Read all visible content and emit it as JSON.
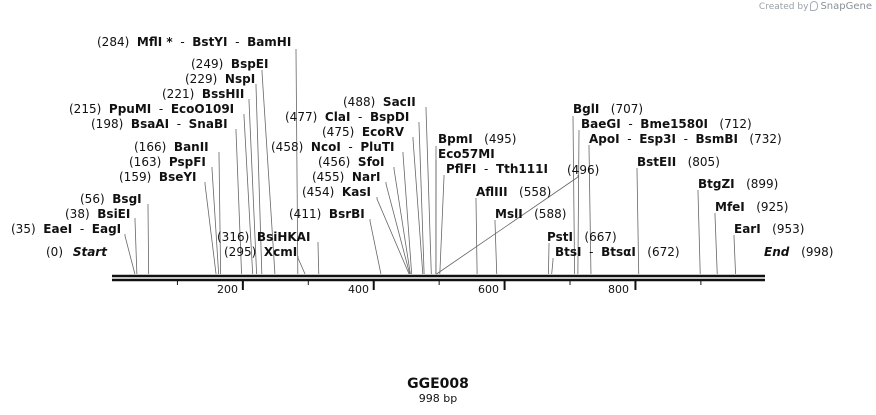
{
  "map": {
    "name": "GGE008",
    "length_label": "998 bp",
    "length": 998,
    "credit_prefix": "Created by",
    "credit_brand": "SnapGene",
    "start_label": "Start",
    "end_label": "End",
    "start_pos": "(0)",
    "end_pos": "(998)",
    "ticks": [
      "200",
      "400",
      "600",
      "800"
    ]
  },
  "sites": [
    {
      "id": "mfli",
      "pos": "(284)",
      "names": [
        "MflI *",
        "BstYI",
        "BamHI"
      ],
      "cut": 284
    },
    {
      "id": "bspei",
      "pos": "(249)",
      "names": [
        "BspEI"
      ],
      "cut": 249
    },
    {
      "id": "nspi",
      "pos": "(229)",
      "names": [
        "NspI"
      ],
      "cut": 229
    },
    {
      "id": "bsshii",
      "pos": "(221)",
      "names": [
        "BssHII"
      ],
      "cut": 221
    },
    {
      "id": "ppumi",
      "pos": "(215)",
      "names": [
        "PpuMI",
        "EcoO109I"
      ],
      "cut": 215
    },
    {
      "id": "bsaai",
      "pos": "(198)",
      "names": [
        "BsaAI",
        "SnaBI"
      ],
      "cut": 198
    },
    {
      "id": "banii",
      "pos": "(166)",
      "names": [
        "BanII"
      ],
      "cut": 166
    },
    {
      "id": "pspfi",
      "pos": "(163)",
      "names": [
        "PspFI"
      ],
      "cut": 163
    },
    {
      "id": "bseyi",
      "pos": "(159)",
      "names": [
        "BseYI"
      ],
      "cut": 159
    },
    {
      "id": "bsgi",
      "pos": "(56)",
      "names": [
        "BsgI"
      ],
      "cut": 56
    },
    {
      "id": "bsiei",
      "pos": "(38)",
      "names": [
        "BsiEI"
      ],
      "cut": 38
    },
    {
      "id": "eaei",
      "pos": "(35)",
      "names": [
        "EaeI",
        "EagI"
      ],
      "cut": 35
    },
    {
      "id": "bsihkai",
      "pos": "(316)",
      "names": [
        "BsiHKAI"
      ],
      "cut": 316
    },
    {
      "id": "xcmi",
      "pos": "(295)",
      "names": [
        "XcmI"
      ],
      "cut": 295
    },
    {
      "id": "sacii",
      "pos": "(488)",
      "names": [
        "SacII"
      ],
      "cut": 488
    },
    {
      "id": "clai",
      "pos": "(477)",
      "names": [
        "ClaI",
        "BspDI"
      ],
      "cut": 477
    },
    {
      "id": "ecorv",
      "pos": "(475)",
      "names": [
        "EcoRV"
      ],
      "cut": 475
    },
    {
      "id": "ncoi",
      "pos": "(458)",
      "names": [
        "NcoI",
        "PluTI"
      ],
      "cut": 458
    },
    {
      "id": "sfoi",
      "pos": "(456)",
      "names": [
        "SfoI"
      ],
      "cut": 456
    },
    {
      "id": "nari",
      "pos": "(455)",
      "names": [
        "NarI"
      ],
      "cut": 455
    },
    {
      "id": "kasi",
      "pos": "(454)",
      "names": [
        "KasI"
      ],
      "cut": 454
    },
    {
      "id": "bsrbi",
      "pos": "(411)",
      "names": [
        "BsrBI"
      ],
      "cut": 411
    },
    {
      "id": "bpmi",
      "pos": "(495)",
      "names": [
        "BpmI"
      ],
      "cut": 495
    },
    {
      "id": "eco57mi",
      "pos": "",
      "names": [
        "Eco57MI"
      ],
      "cut": 495
    },
    {
      "id": "pflfi",
      "pos": "",
      "names": [
        "PflFI",
        "Tth111I"
      ],
      "cut": 501
    },
    {
      "id": "afliii",
      "pos": "(558)",
      "names": [
        "AflIII"
      ],
      "cut": 558
    },
    {
      "id": "msli",
      "pos": "(588)",
      "names": [
        "MslI"
      ],
      "cut": 588
    },
    {
      "id": "bgli",
      "pos": "(707)",
      "names": [
        "BglI"
      ],
      "cut": 707
    },
    {
      "id": "baegi",
      "pos": "(712)",
      "names": [
        "BaeGI",
        "Bme1580I"
      ],
      "cut": 712
    },
    {
      "id": "apoi",
      "pos": "(732)",
      "names": [
        "ApoI",
        "Esp3I",
        "BsmBI"
      ],
      "cut": 732
    },
    {
      "id": "bsteii",
      "pos": "(805)",
      "names": [
        "BstEII"
      ],
      "cut": 805
    },
    {
      "id": "btgzi",
      "pos": "(899)",
      "names": [
        "BtgZI"
      ],
      "cut": 899
    },
    {
      "id": "mfei",
      "pos": "(925)",
      "names": [
        "MfeI"
      ],
      "cut": 925
    },
    {
      "id": "eari",
      "pos": "(953)",
      "names": [
        "EarI"
      ],
      "cut": 953
    },
    {
      "id": "psti",
      "pos": "(667)",
      "names": [
        "PstI"
      ],
      "cut": 667
    },
    {
      "id": "btsi",
      "pos": "(672)",
      "names": [
        "BtsI",
        "BtsαI"
      ],
      "cut": 672
    },
    {
      "id": "extra496",
      "pos": "(496)",
      "names": [],
      "cut": 496
    }
  ]
}
